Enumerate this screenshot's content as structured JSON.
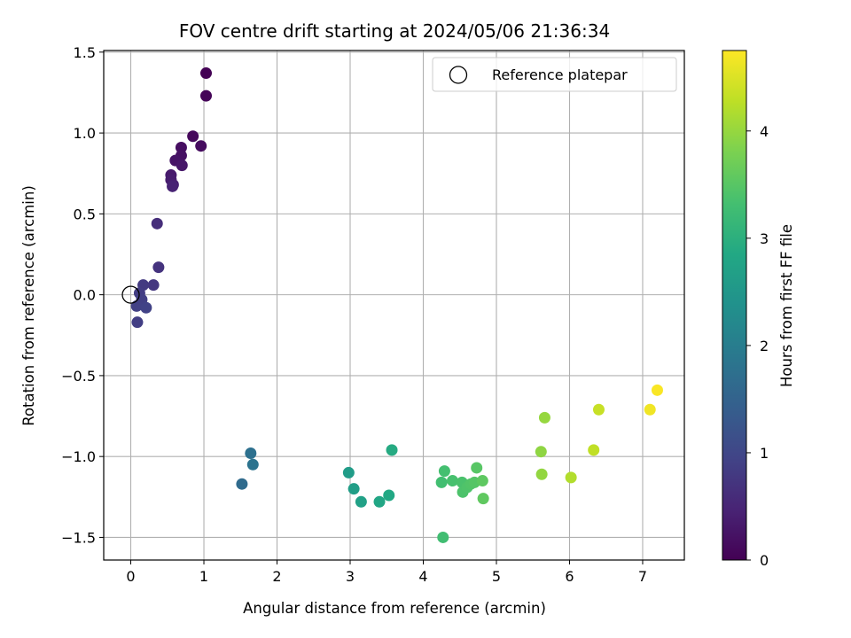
{
  "chart_data": {
    "type": "scatter",
    "title": "FOV centre drift starting at 2024/05/06 21:36:34",
    "xlabel": "Angular distance from reference (arcmin)",
    "ylabel": "Rotation from reference (arcmin)",
    "xlim": [
      -0.37,
      7.57
    ],
    "ylim": [
      -1.64,
      1.51
    ],
    "xticks": [
      0,
      1,
      2,
      3,
      4,
      5,
      6,
      7
    ],
    "yticks": [
      -1.5,
      -1.0,
      -0.5,
      0.0,
      0.5,
      1.0,
      1.5
    ],
    "xtick_labels": [
      "0",
      "1",
      "2",
      "3",
      "4",
      "5",
      "6",
      "7"
    ],
    "ytick_labels": [
      "−1.5",
      "−1.0",
      "−0.5",
      "0.0",
      "0.5",
      "1.0",
      "1.5"
    ],
    "grid": true,
    "colormap": "viridis",
    "legend": {
      "label": "Reference platepar",
      "placement": "upper right"
    },
    "reference_point": {
      "x": 0.0,
      "y": 0.0
    },
    "colorbar": {
      "label": "Hours from first FF file",
      "range": [
        0,
        4.75
      ],
      "ticks": [
        0,
        1,
        2,
        3,
        4
      ],
      "tick_labels": [
        "0",
        "1",
        "2",
        "3",
        "4"
      ]
    },
    "points": [
      {
        "x": 1.03,
        "y": 1.37,
        "c": 0.02
      },
      {
        "x": 1.03,
        "y": 1.23,
        "c": 0.06
      },
      {
        "x": 0.85,
        "y": 0.98,
        "c": 0.1
      },
      {
        "x": 0.96,
        "y": 0.92,
        "c": 0.14
      },
      {
        "x": 0.69,
        "y": 0.91,
        "c": 0.18
      },
      {
        "x": 0.69,
        "y": 0.86,
        "c": 0.22
      },
      {
        "x": 0.61,
        "y": 0.83,
        "c": 0.26
      },
      {
        "x": 0.7,
        "y": 0.8,
        "c": 0.3
      },
      {
        "x": 0.55,
        "y": 0.74,
        "c": 0.34
      },
      {
        "x": 0.55,
        "y": 0.71,
        "c": 0.38
      },
      {
        "x": 0.58,
        "y": 0.68,
        "c": 0.42
      },
      {
        "x": 0.57,
        "y": 0.67,
        "c": 0.46
      },
      {
        "x": 0.36,
        "y": 0.44,
        "c": 0.62
      },
      {
        "x": 0.38,
        "y": 0.17,
        "c": 0.7
      },
      {
        "x": 0.31,
        "y": 0.06,
        "c": 0.76
      },
      {
        "x": 0.17,
        "y": 0.06,
        "c": 0.8
      },
      {
        "x": 0.12,
        "y": 0.01,
        "c": 0.84
      },
      {
        "x": 0.15,
        "y": -0.03,
        "c": 0.88
      },
      {
        "x": 0.08,
        "y": -0.07,
        "c": 0.9
      },
      {
        "x": 0.21,
        "y": -0.08,
        "c": 0.92
      },
      {
        "x": 0.09,
        "y": -0.17,
        "c": 0.86
      },
      {
        "x": 1.52,
        "y": -1.17,
        "c": 1.65
      },
      {
        "x": 1.64,
        "y": -0.98,
        "c": 1.75
      },
      {
        "x": 1.67,
        "y": -1.05,
        "c": 1.8
      },
      {
        "x": 2.98,
        "y": -1.1,
        "c": 2.6
      },
      {
        "x": 3.05,
        "y": -1.2,
        "c": 2.65
      },
      {
        "x": 3.15,
        "y": -1.28,
        "c": 2.7
      },
      {
        "x": 3.4,
        "y": -1.28,
        "c": 2.8
      },
      {
        "x": 3.53,
        "y": -1.24,
        "c": 2.85
      },
      {
        "x": 3.57,
        "y": -0.96,
        "c": 2.9
      },
      {
        "x": 4.25,
        "y": -1.16,
        "c": 3.3
      },
      {
        "x": 4.29,
        "y": -1.09,
        "c": 3.32
      },
      {
        "x": 4.4,
        "y": -1.15,
        "c": 3.35
      },
      {
        "x": 4.53,
        "y": -1.16,
        "c": 3.38
      },
      {
        "x": 4.54,
        "y": -1.22,
        "c": 3.4
      },
      {
        "x": 4.6,
        "y": -1.19,
        "c": 3.42
      },
      {
        "x": 4.65,
        "y": -1.17,
        "c": 3.45
      },
      {
        "x": 4.7,
        "y": -1.16,
        "c": 3.48
      },
      {
        "x": 4.73,
        "y": -1.07,
        "c": 3.5
      },
      {
        "x": 4.81,
        "y": -1.15,
        "c": 3.55
      },
      {
        "x": 4.82,
        "y": -1.26,
        "c": 3.57
      },
      {
        "x": 4.27,
        "y": -1.5,
        "c": 3.28
      },
      {
        "x": 5.61,
        "y": -0.97,
        "c": 3.95
      },
      {
        "x": 5.62,
        "y": -1.11,
        "c": 3.98
      },
      {
        "x": 5.66,
        "y": -0.76,
        "c": 4.0
      },
      {
        "x": 6.02,
        "y": -1.13,
        "c": 4.2
      },
      {
        "x": 6.33,
        "y": -0.96,
        "c": 4.3
      },
      {
        "x": 6.4,
        "y": -0.71,
        "c": 4.35
      },
      {
        "x": 7.1,
        "y": -0.71,
        "c": 4.65
      },
      {
        "x": 7.2,
        "y": -0.59,
        "c": 4.72
      }
    ]
  }
}
